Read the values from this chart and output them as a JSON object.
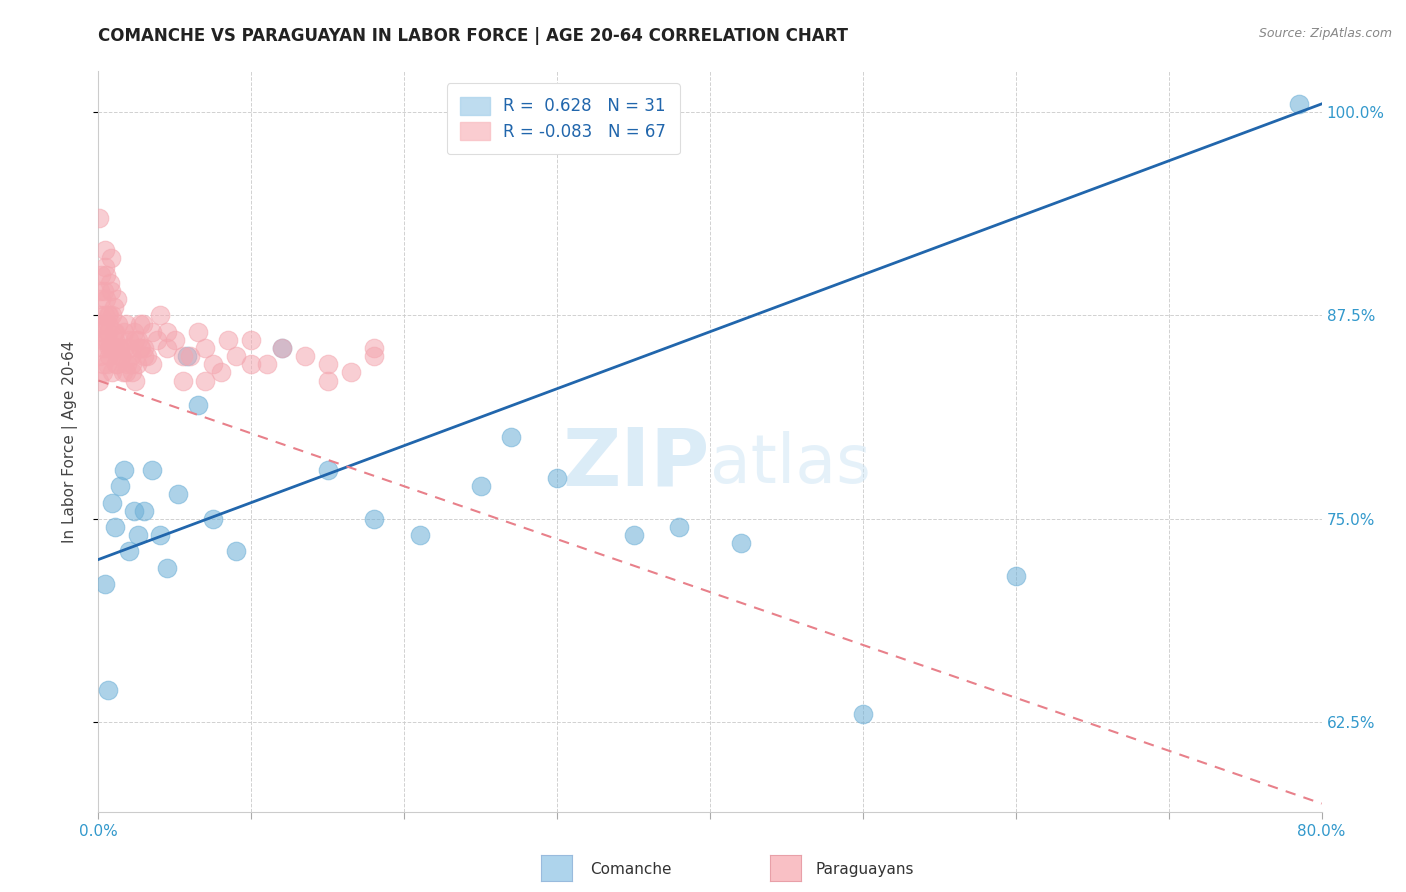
{
  "title": "COMANCHE VS PARAGUAYAN IN LABOR FORCE | AGE 20-64 CORRELATION CHART",
  "source": "Source: ZipAtlas.com",
  "ylabel": "In Labor Force | Age 20-64",
  "comanche_R": 0.628,
  "comanche_N": 31,
  "paraguayan_R": -0.083,
  "paraguayan_N": 67,
  "xlim": [
    0.0,
    80.0
  ],
  "ylim": [
    57.0,
    102.5
  ],
  "comanche_color": "#6baed6",
  "paraguayan_color": "#f4a7b0",
  "comanche_line_color": "#2166ac",
  "paraguayan_line_color": "#e8808a",
  "watermark_zip": "ZIP",
  "watermark_atlas": "atlas",
  "legend_label_comanche": "Comanche",
  "legend_label_paraguayan": "Paraguayans",
  "com_line_x0": 0.0,
  "com_line_y0": 72.5,
  "com_line_x1": 80.0,
  "com_line_y1": 100.5,
  "par_line_x0": 0.0,
  "par_line_y0": 83.5,
  "par_line_x1": 80.0,
  "par_line_y1": 57.5,
  "comanche_x": [
    0.4,
    0.6,
    0.9,
    1.1,
    1.4,
    1.7,
    2.0,
    2.3,
    2.6,
    3.0,
    3.5,
    4.0,
    4.5,
    5.2,
    5.8,
    6.5,
    7.5,
    9.0,
    12.0,
    15.0,
    18.0,
    21.0,
    25.0,
    27.0,
    30.0,
    35.0,
    38.0,
    42.0,
    50.0,
    60.0,
    78.5
  ],
  "comanche_y": [
    71.0,
    64.5,
    76.0,
    74.5,
    77.0,
    78.0,
    73.0,
    75.5,
    74.0,
    75.5,
    78.0,
    74.0,
    72.0,
    76.5,
    85.0,
    82.0,
    75.0,
    73.0,
    85.5,
    78.0,
    75.0,
    74.0,
    77.0,
    80.0,
    77.5,
    74.0,
    74.5,
    73.5,
    63.0,
    71.5,
    100.5
  ],
  "paraguayan_x": [
    0.05,
    0.08,
    0.12,
    0.16,
    0.2,
    0.24,
    0.28,
    0.32,
    0.36,
    0.4,
    0.44,
    0.48,
    0.52,
    0.56,
    0.6,
    0.64,
    0.68,
    0.72,
    0.76,
    0.8,
    0.85,
    0.9,
    0.95,
    1.0,
    1.05,
    1.1,
    1.15,
    1.2,
    1.3,
    1.4,
    1.5,
    1.6,
    1.7,
    1.8,
    1.9,
    2.0,
    2.1,
    2.2,
    2.3,
    2.4,
    2.5,
    2.6,
    2.7,
    2.8,
    2.9,
    3.0,
    3.2,
    3.5,
    3.8,
    4.0,
    4.5,
    5.0,
    5.5,
    6.0,
    6.5,
    7.0,
    7.5,
    8.0,
    8.5,
    9.0,
    10.0,
    11.0,
    12.0,
    13.5,
    15.0,
    16.5,
    18.0
  ],
  "paraguayan_y": [
    93.5,
    87.5,
    89.0,
    90.0,
    88.5,
    86.0,
    84.5,
    87.0,
    89.0,
    91.5,
    90.5,
    90.0,
    88.5,
    86.0,
    87.5,
    87.0,
    85.5,
    85.0,
    89.5,
    91.0,
    89.0,
    87.5,
    85.5,
    88.0,
    86.5,
    86.0,
    84.5,
    88.5,
    87.0,
    85.5,
    85.0,
    84.0,
    85.5,
    87.0,
    84.5,
    86.0,
    85.0,
    84.0,
    86.5,
    86.0,
    84.5,
    86.0,
    87.0,
    85.5,
    87.0,
    85.0,
    85.0,
    86.5,
    86.0,
    87.5,
    86.5,
    86.0,
    85.0,
    85.0,
    86.5,
    85.5,
    84.5,
    84.0,
    86.0,
    85.0,
    86.0,
    84.5,
    85.5,
    85.0,
    84.5,
    84.0,
    85.5
  ],
  "paraguayan_extra_x": [
    0.05,
    0.12,
    0.18,
    0.25,
    0.32,
    0.38,
    0.45,
    0.52,
    0.58,
    0.65,
    0.72,
    0.8,
    0.9,
    1.0,
    1.1,
    1.2,
    1.35,
    1.5,
    1.65,
    1.8,
    2.0,
    2.2,
    2.4,
    2.7,
    3.0,
    3.5,
    4.5,
    5.5,
    7.0,
    10.0,
    15.0,
    18.0
  ],
  "paraguayan_extra_y": [
    83.5,
    85.0,
    87.0,
    86.5,
    84.0,
    85.5,
    87.5,
    86.0,
    84.5,
    86.5,
    87.5,
    85.5,
    84.0,
    85.5,
    86.5,
    84.5,
    85.5,
    85.0,
    86.5,
    84.0,
    85.5,
    84.5,
    83.5,
    85.5,
    85.5,
    84.5,
    85.5,
    83.5,
    83.5,
    84.5,
    83.5,
    85.0
  ],
  "background_color": "#ffffff",
  "grid_color": "#cccccc"
}
